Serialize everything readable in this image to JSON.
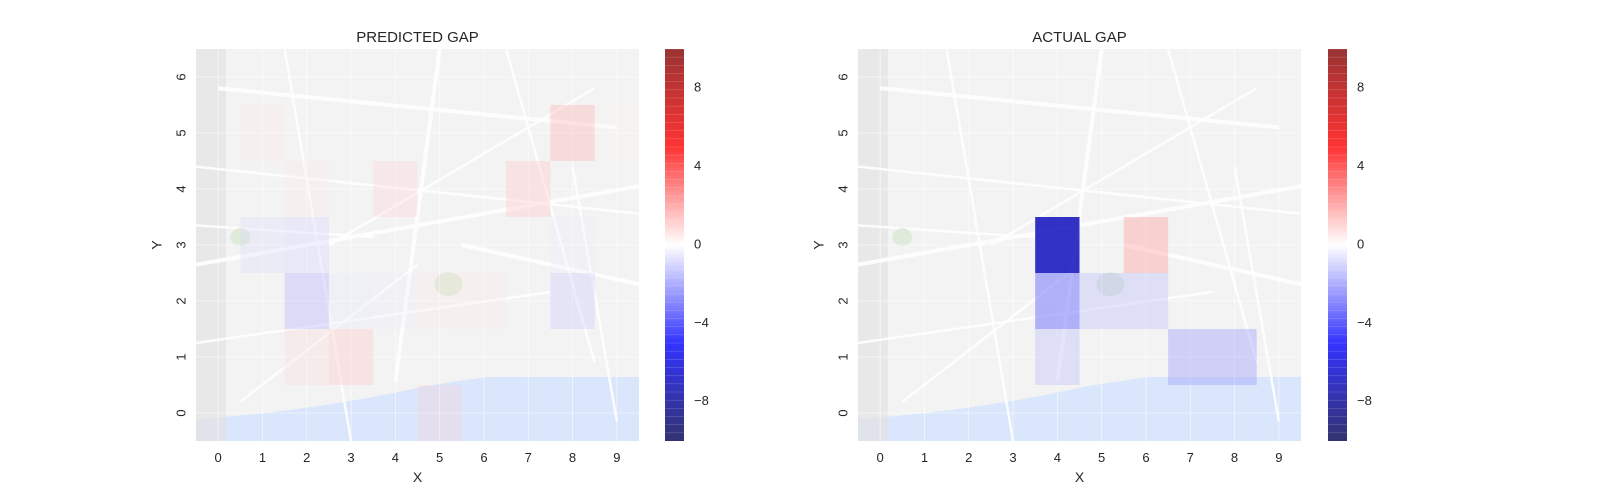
{
  "chart_data": [
    {
      "type": "heatmap",
      "title": "PREDICTED GAP",
      "xlabel": "X",
      "ylabel": "Y",
      "x": [
        0,
        1,
        2,
        3,
        4,
        5,
        6,
        7,
        8,
        9
      ],
      "y": [
        0,
        1,
        2,
        3,
        4,
        5,
        6
      ],
      "xlim": [
        -0.5,
        9.5
      ],
      "ylim": [
        -0.5,
        6.5
      ],
      "background": "street-map",
      "colormap": "seismic",
      "colorbar": {
        "range": [
          -10,
          10
        ],
        "ticks": [
          -8,
          -4,
          0,
          4,
          8
        ]
      },
      "cells": [
        {
          "x": 1,
          "y": 5,
          "value": 0.6
        },
        {
          "x": 2,
          "y": 4,
          "value": 0.5
        },
        {
          "x": 4,
          "y": 4,
          "value": 1.0
        },
        {
          "x": 7,
          "y": 4,
          "value": 1.3
        },
        {
          "x": 8,
          "y": 5,
          "value": 1.6
        },
        {
          "x": 9,
          "y": 5,
          "value": 0.3
        },
        {
          "x": 1,
          "y": 3,
          "value": -0.8
        },
        {
          "x": 2,
          "y": 3,
          "value": -1.0
        },
        {
          "x": 8,
          "y": 3,
          "value": -0.4
        },
        {
          "x": 2,
          "y": 2,
          "value": -1.6
        },
        {
          "x": 3,
          "y": 2,
          "value": -0.6
        },
        {
          "x": 4,
          "y": 2,
          "value": -0.4
        },
        {
          "x": 5,
          "y": 2,
          "value": 0.6
        },
        {
          "x": 6,
          "y": 2,
          "value": 0.5
        },
        {
          "x": 8,
          "y": 2,
          "value": -1.2
        },
        {
          "x": 2,
          "y": 1,
          "value": 0.8
        },
        {
          "x": 3,
          "y": 1,
          "value": 1.3
        },
        {
          "x": 5,
          "y": 0,
          "value": 1.0
        }
      ]
    },
    {
      "type": "heatmap",
      "title": "ACTUAL GAP",
      "xlabel": "X",
      "ylabel": "Y",
      "x": [
        0,
        1,
        2,
        3,
        4,
        5,
        6,
        7,
        8,
        9
      ],
      "y": [
        0,
        1,
        2,
        3,
        4,
        5,
        6
      ],
      "xlim": [
        -0.5,
        9.5
      ],
      "ylim": [
        -0.5,
        6.5
      ],
      "background": "street-map",
      "colormap": "seismic",
      "colorbar": {
        "range": [
          -10,
          10
        ],
        "ticks": [
          -8,
          -4,
          0,
          4,
          8
        ]
      },
      "cells": [
        {
          "x": 4,
          "y": 3,
          "value": -7.0
        },
        {
          "x": 6,
          "y": 3,
          "value": 2.0
        },
        {
          "x": 4,
          "y": 2,
          "value": -3.0
        },
        {
          "x": 5,
          "y": 2,
          "value": -1.5
        },
        {
          "x": 6,
          "y": 2,
          "value": -1.5
        },
        {
          "x": 4,
          "y": 1,
          "value": -1.5
        },
        {
          "x": 7,
          "y": 1,
          "value": -2.0
        },
        {
          "x": 8,
          "y": 1,
          "value": -2.0
        }
      ]
    }
  ]
}
